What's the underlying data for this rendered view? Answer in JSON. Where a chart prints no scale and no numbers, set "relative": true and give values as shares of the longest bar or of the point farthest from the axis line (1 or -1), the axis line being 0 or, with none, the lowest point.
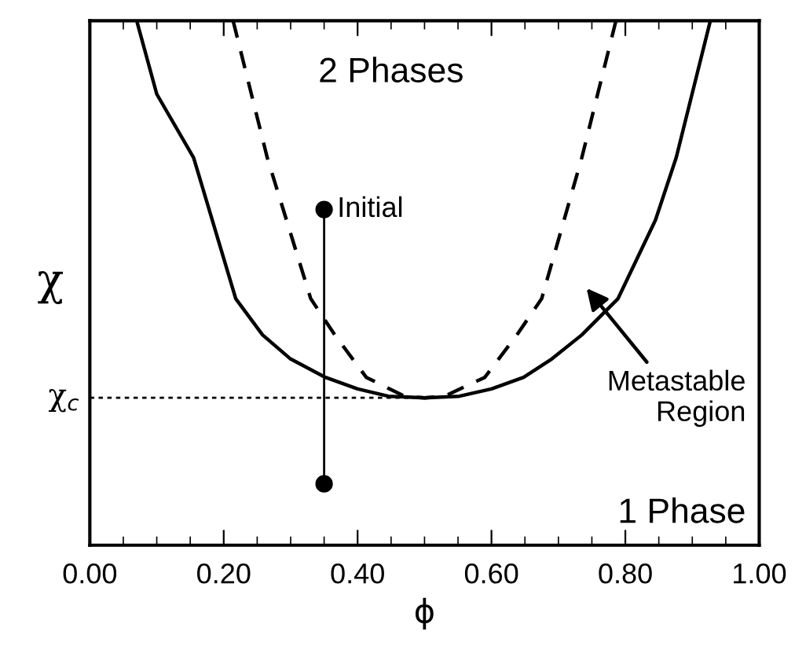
{
  "chart_data": {
    "type": "line",
    "relative": true,
    "xlabel": "ϕ",
    "ylabel": "χ",
    "xlim": [
      0.0,
      1.0
    ],
    "xticks": [
      {
        "value": 0.0,
        "label": "0.00"
      },
      {
        "value": 0.2,
        "label": "0.20"
      },
      {
        "value": 0.4,
        "label": "0.40"
      },
      {
        "value": 0.6,
        "label": "0.60"
      },
      {
        "value": 0.8,
        "label": "0.80"
      },
      {
        "value": 1.0,
        "label": "1.00"
      }
    ],
    "series": [
      {
        "color": "#000000",
        "line_style": "solid",
        "marker": "none",
        "x": [
          0.07,
          0.1,
          0.155,
          0.218,
          0.258,
          0.3,
          0.352,
          0.4,
          0.446,
          0.5,
          0.552,
          0.6,
          0.648,
          0.69,
          0.735,
          0.789,
          0.845,
          0.876,
          0.927
        ],
        "values": [
          1.0,
          0.86,
          0.739,
          0.47,
          0.401,
          0.355,
          0.32,
          0.298,
          0.284,
          0.281,
          0.284,
          0.298,
          0.32,
          0.355,
          0.401,
          0.47,
          0.62,
          0.739,
          1.0
        ]
      },
      {
        "color": "#000000",
        "line_style": "dashed",
        "marker": "none",
        "x": [
          0.214,
          0.265,
          0.33,
          0.366,
          0.413,
          0.47,
          0.5,
          0.53,
          0.59,
          0.638,
          0.675,
          0.735,
          0.786
        ],
        "values": [
          1.0,
          0.739,
          0.47,
          0.401,
          0.32,
          0.284,
          0.281,
          0.284,
          0.32,
          0.401,
          0.47,
          0.739,
          1.0
        ]
      },
      {
        "color": "#000000",
        "line_style": "solid",
        "marker": "circle",
        "x": [
          0.35,
          0.35
        ],
        "values": [
          0.64,
          0.117
        ]
      }
    ],
    "ref_lines": [
      {
        "axis": "y",
        "value": 0.281,
        "label": "χ$_{c}$",
        "line_style": "dotted",
        "color": "#000000"
      }
    ],
    "annotations": [
      "2 Phases",
      "1 Phase",
      {
        "text": "Initial",
        "x": 0.35,
        "y": 0.64
      },
      "Metastable\nRegion"
    ],
    "legend": false,
    "grid": false
  }
}
